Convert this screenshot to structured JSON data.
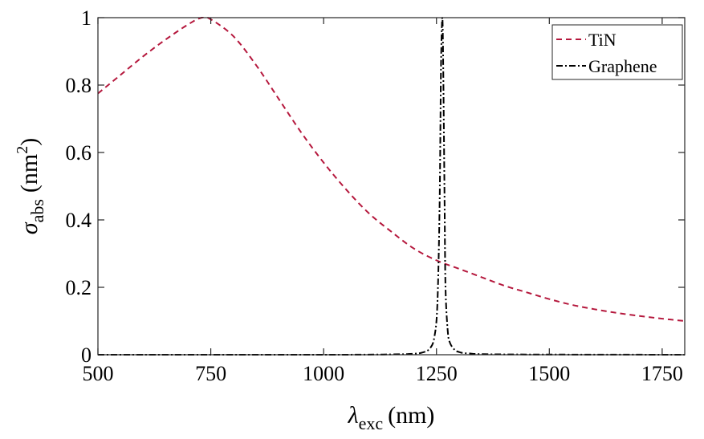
{
  "chart_data": {
    "type": "line",
    "title": "",
    "xlabel": {
      "symbol": "λ",
      "subscript": "exc",
      "unit": "(nm)"
    },
    "ylabel": {
      "symbol": "σ",
      "subscript": "abs",
      "unit_open": "(nm",
      "superscript": "2",
      "unit_close": ")"
    },
    "xlim": [
      500,
      1800
    ],
    "ylim": [
      0,
      1
    ],
    "xticks": [
      500,
      750,
      1000,
      1250,
      1500,
      1750
    ],
    "xtick_labels": [
      "500",
      "750",
      "1000",
      "1250",
      "1500",
      "1750"
    ],
    "yticks": [
      0,
      0.2,
      0.4,
      0.6,
      0.8,
      1
    ],
    "ytick_labels": [
      "0",
      "0.2",
      "0.4",
      "0.6",
      "0.8",
      "1"
    ],
    "legend_position": "top-right",
    "series": [
      {
        "name": "TiN",
        "color": "#b5183d",
        "style": "dashed",
        "x": [
          500,
          550,
          600,
          650,
          700,
          730,
          750,
          800,
          850,
          900,
          950,
          1000,
          1050,
          1100,
          1150,
          1200,
          1250,
          1300,
          1350,
          1400,
          1450,
          1500,
          1550,
          1600,
          1650,
          1700,
          1750,
          1800
        ],
        "values": [
          0.775,
          0.83,
          0.885,
          0.935,
          0.98,
          1.0,
          0.995,
          0.945,
          0.86,
          0.76,
          0.66,
          0.57,
          0.49,
          0.42,
          0.365,
          0.315,
          0.28,
          0.255,
          0.23,
          0.205,
          0.185,
          0.165,
          0.148,
          0.135,
          0.124,
          0.115,
          0.107,
          0.1
        ]
      },
      {
        "name": "Graphene",
        "color": "#000000",
        "style": "dashdot",
        "x": [
          500,
          1000,
          1150,
          1200,
          1220,
          1235,
          1245,
          1252,
          1257,
          1260,
          1263,
          1265,
          1268,
          1270,
          1275,
          1280,
          1290,
          1300,
          1320,
          1400,
          1800
        ],
        "values": [
          0.0,
          0.0,
          0.001,
          0.003,
          0.007,
          0.018,
          0.05,
          0.15,
          0.45,
          0.85,
          1.0,
          0.85,
          0.45,
          0.2,
          0.07,
          0.035,
          0.015,
          0.008,
          0.004,
          0.001,
          0.0
        ]
      }
    ]
  }
}
